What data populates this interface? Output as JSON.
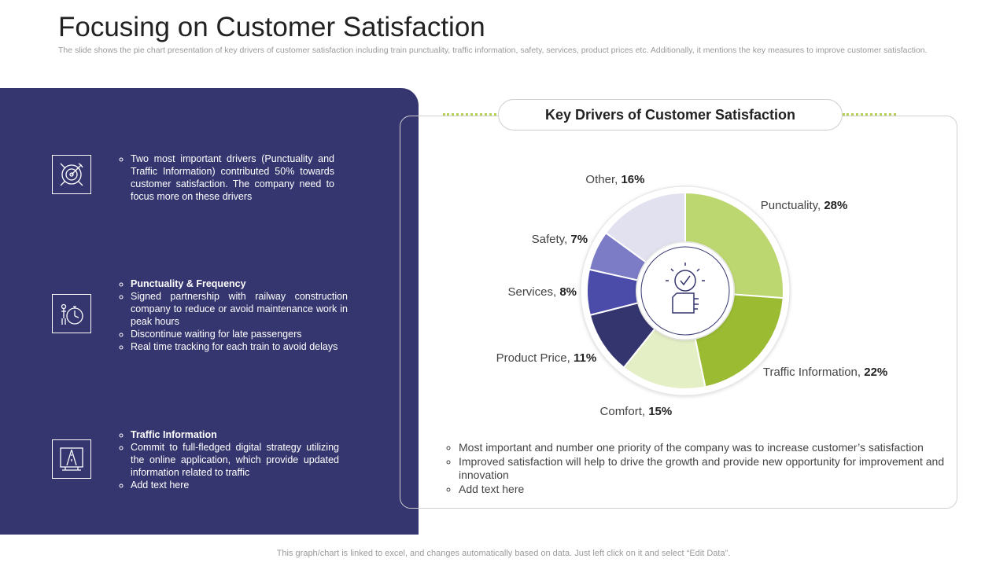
{
  "header": {
    "title": "Focusing on Customer Satisfaction",
    "subtitle": "The slide shows the pie chart presentation of key drivers of customer satisfaction including train punctuality, traffic information, safety, services, product prices etc. Additionally, it mentions the key measures to improve customer satisfaction."
  },
  "left_panel": {
    "items": [
      {
        "bullets": [
          "Two most important drivers (Punctuality and Traffic Information) contributed 50% towards customer satisfaction. The company need to focus more on these drivers"
        ]
      },
      {
        "heading": "Punctuality & Frequency",
        "bullets": [
          "Signed partnership with railway construction company to reduce or avoid maintenance work in peak hours",
          "Discontinue waiting for late passengers",
          "Real time tracking for each train to avoid delays"
        ]
      },
      {
        "heading": "Traffic Information",
        "bullets": [
          "Commit to full-fledged digital strategy utilizing the online application, which provide updated information related to traffic",
          "Add text here"
        ]
      }
    ]
  },
  "notes": [
    "Most important and number one priority of the company was to increase customer’s satisfaction",
    "Improved satisfaction will help to drive the growth and provide new opportunity for improvement and innovation",
    "Add text here"
  ],
  "footer": "This graph/chart is linked to excel, and changes automatically based on data. Just left click on it and select “Edit Data”.",
  "chart_data": {
    "type": "pie",
    "title": "Key Drivers of Customer Satisfaction",
    "categories": [
      "Punctuality",
      "Traffic Information",
      "Comfort",
      "Product Price",
      "Services",
      "Safety",
      "Other"
    ],
    "values": [
      28,
      22,
      15,
      11,
      8,
      7,
      16
    ],
    "value_labels": [
      "28%",
      "22%",
      "15%",
      "11%",
      "8%",
      "7%",
      "16%"
    ],
    "colors": [
      "#bdd770",
      "#9bbb33",
      "#e5efc6",
      "#34356f",
      "#4b4ba9",
      "#7b7bc6",
      "#e1e1ef"
    ]
  }
}
